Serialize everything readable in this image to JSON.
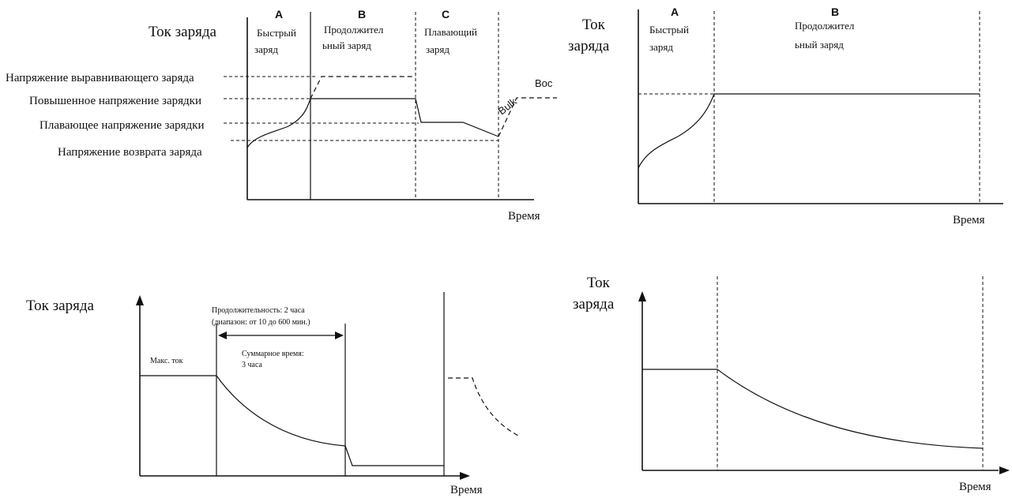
{
  "d1": {
    "ylabel": "Ток заряда",
    "xlabel": "Время",
    "stage_a_letter": "A",
    "stage_a_line1": "Быстрый",
    "stage_a_line2": "заряд",
    "stage_b_letter": "B",
    "stage_b_line1": "Продолжител",
    "stage_b_line2": "ьный заряд",
    "stage_c_letter": "C",
    "stage_c_line1": "Плавающий",
    "stage_c_line2": "заряд",
    "level_equalize": "Напряжение выравнивающего заряда",
    "level_boost": "Повышенное напряжение зарядки",
    "level_float": "Плавающее напряжение зарядки",
    "level_return": "Напряжение возврата заряда",
    "bulk": "Bulk",
    "boc": "Boc"
  },
  "d2": {
    "ylabel_line1": "Ток",
    "ylabel_line2": "заряда",
    "xlabel": "Время",
    "stage_a_letter": "A",
    "stage_a_line1": "Быстрый",
    "stage_a_line2": "заряд",
    "stage_b_letter": "B",
    "stage_b_line1": "Продолжител",
    "stage_b_line2": "ьный заряд"
  },
  "d3": {
    "ylabel": "Ток заряда",
    "xlabel": "Время",
    "duration_line1": "Продолжительность: 2 часа",
    "duration_line2": "(диапазон: от 10 до 600 мин.)",
    "total_line1": "Суммарное время:",
    "total_line2": "3 часа",
    "max_current": "Макс. ток"
  },
  "d4": {
    "ylabel_line1": "Ток",
    "ylabel_line2": "заряда",
    "xlabel": "Время"
  }
}
